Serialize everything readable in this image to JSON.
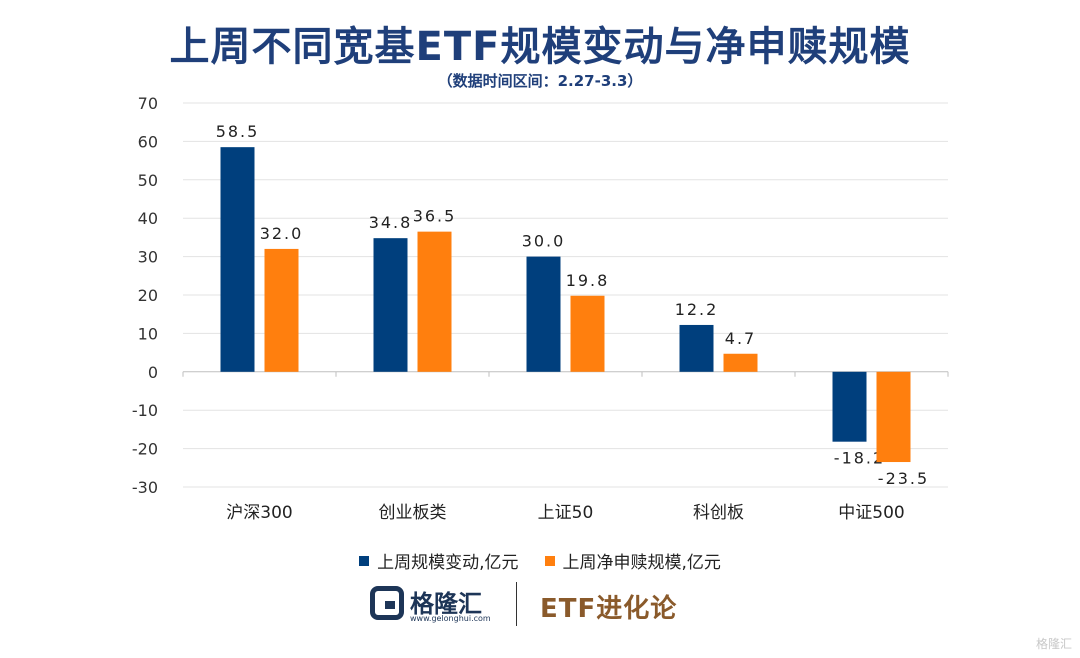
{
  "header": {
    "title": "上周不同宽基ETF规模变动与净申赎规模",
    "subtitle": "（数据时间区间：2.27-3.3）"
  },
  "chart_data": {
    "type": "bar",
    "categories": [
      "沪深300",
      "创业板类",
      "上证50",
      "科创板",
      "中证500"
    ],
    "series": [
      {
        "name": "上周规模变动,亿元",
        "values": [
          58.5,
          34.8,
          30.0,
          12.2,
          -18.2
        ],
        "color": "#003f7d"
      },
      {
        "name": "上周净申赎规模,亿元",
        "values": [
          32.0,
          36.5,
          19.8,
          4.7,
          -23.5
        ],
        "color": "#ff7f0e"
      }
    ],
    "data_labels": [
      [
        "58.5",
        "34.8",
        "30.0",
        "12.2",
        "-18.2"
      ],
      [
        "32.0",
        "36.5",
        "19.8",
        "4.7",
        "-23.5"
      ]
    ],
    "yticks": [
      "70",
      "60",
      "50",
      "40",
      "30",
      "20",
      "10",
      "0",
      "-10",
      "-20",
      "-30"
    ],
    "ylim": [
      -30,
      70
    ],
    "grid": true,
    "legend_position": "bottom"
  },
  "footer": {
    "brand": "格隆汇",
    "brand_url": "www.gelonghui.com",
    "series_name": "ETF进化论",
    "watermark": "格隆汇"
  }
}
